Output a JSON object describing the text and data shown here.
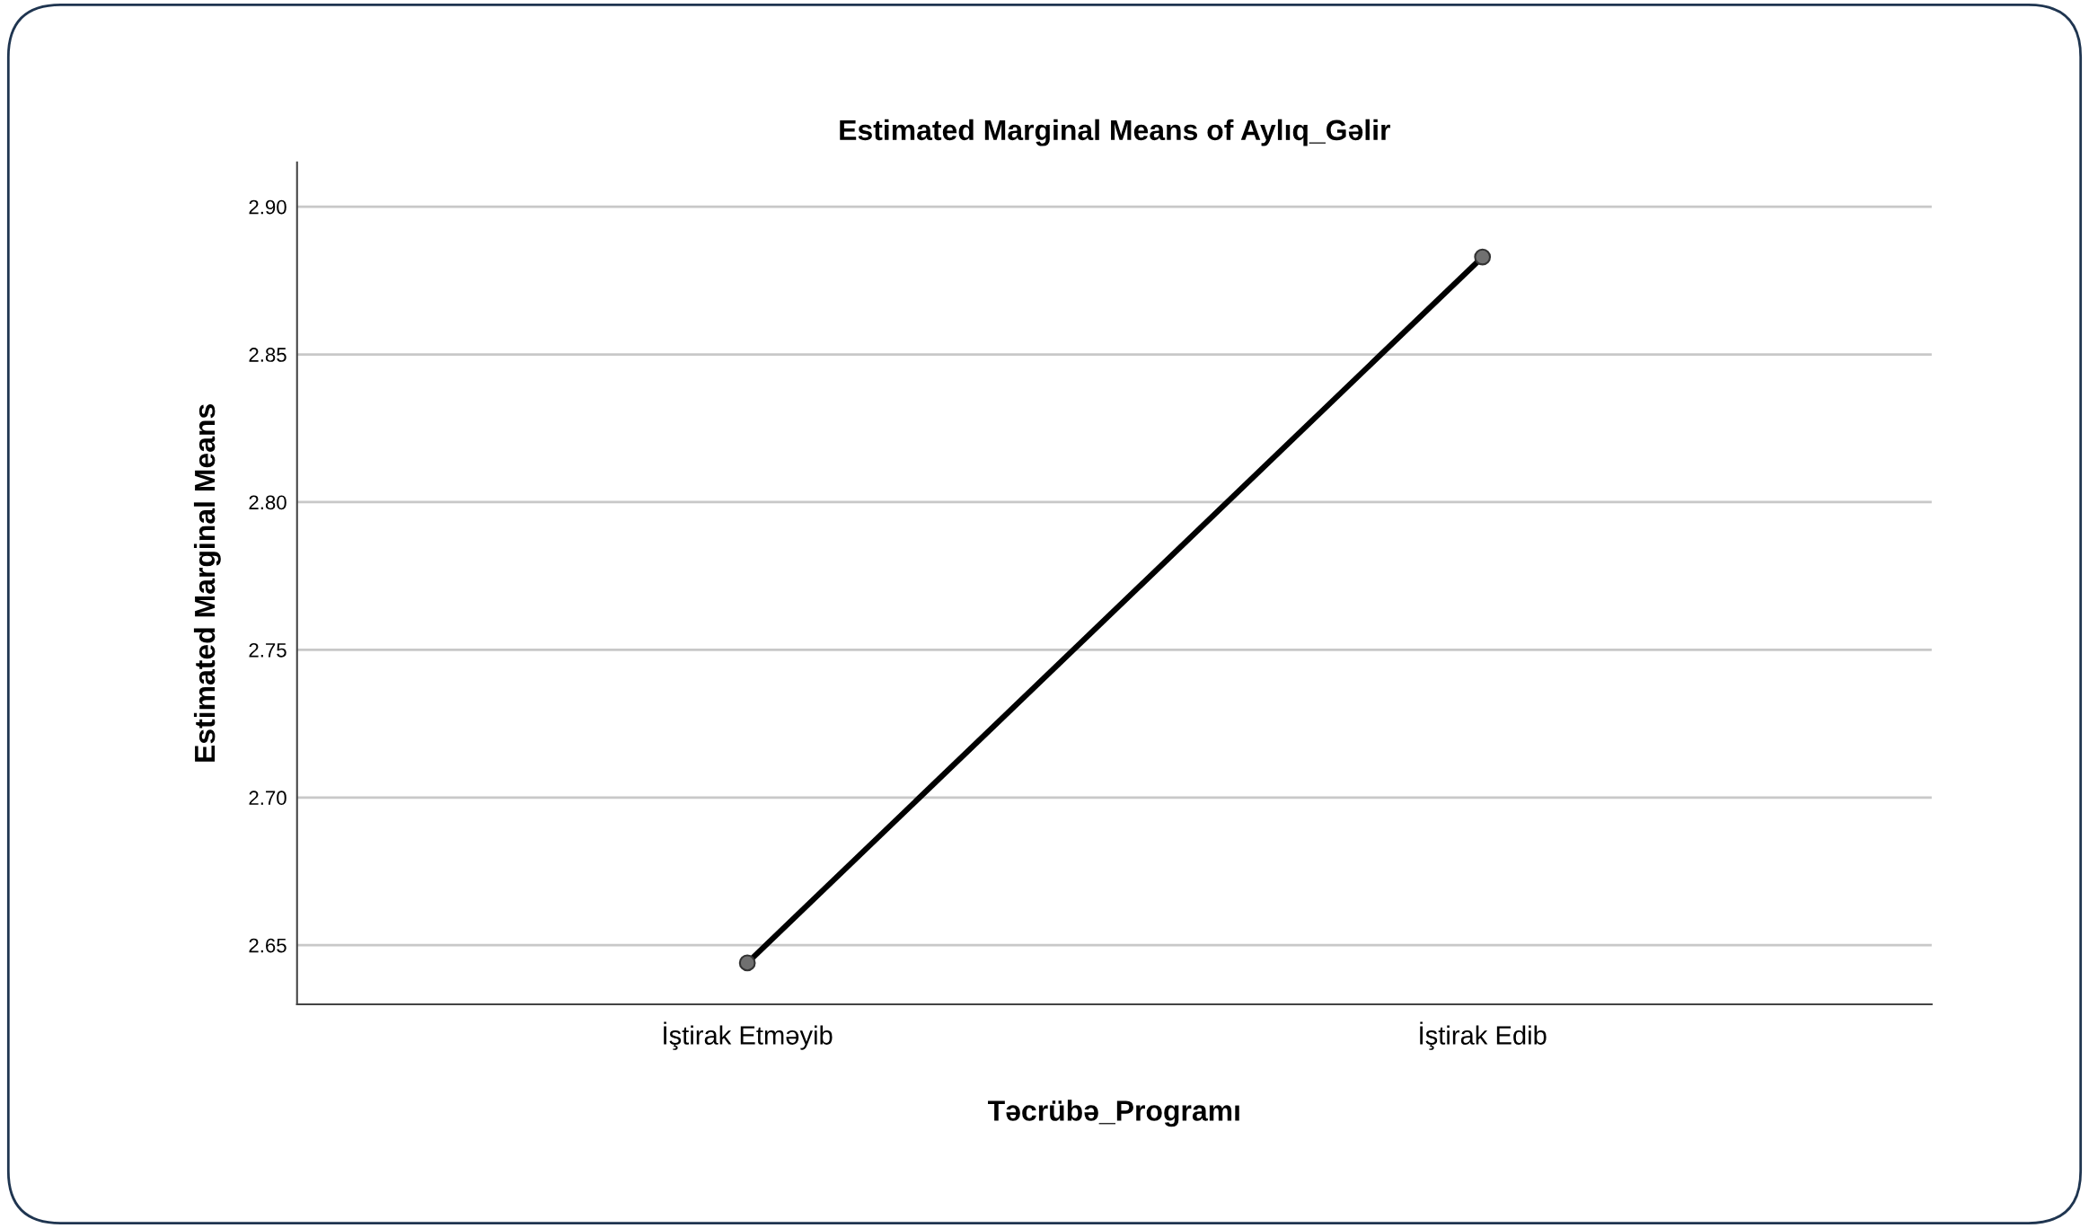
{
  "chart_data": {
    "type": "line",
    "title": "Estimated Marginal Means of Aylıq_Gəlir",
    "xlabel": "Təcrübə_Programı",
    "ylabel": "Estimated Marginal Means",
    "categories": [
      "İştirak Etməyib",
      "İştirak Edib"
    ],
    "series": [
      {
        "color": "#000000",
        "values": [
          2.644,
          2.883
        ]
      }
    ],
    "ylim": [
      2.63,
      2.915
    ],
    "yticks": [
      {
        "value": 2.65,
        "label": "2.65"
      },
      {
        "value": 2.7,
        "label": "2.70"
      },
      {
        "value": 2.75,
        "label": "2.75"
      },
      {
        "value": 2.8,
        "label": "2.80"
      },
      {
        "value": 2.85,
        "label": "2.85"
      },
      {
        "value": 2.9,
        "label": "2.90"
      }
    ],
    "grid": "y",
    "marker": "circle",
    "line_style": "solid",
    "legend": false
  }
}
